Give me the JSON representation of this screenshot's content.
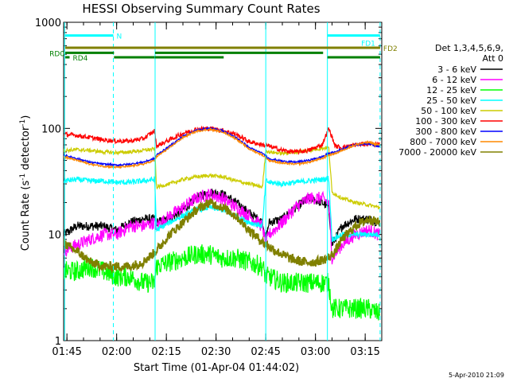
{
  "chart_data": {
    "type": "line",
    "title": "HESSI Observing Summary Count Rates",
    "xlabel": "Start Time (01-Apr-04 01:44:02)",
    "ylabel": "Count Rate (s",
    "ylabel_sup": "-1",
    "ylabel_tail": " detector",
    "ylabel_sup2": "-1",
    "ylabel_close": ")",
    "yscale": "log",
    "ylim": [
      1,
      1000
    ],
    "xlim_minutes": [
      0,
      96
    ],
    "x_ticks": [
      {
        "label": "01:45",
        "t": 1
      },
      {
        "label": "02:00",
        "t": 16
      },
      {
        "label": "02:15",
        "t": 31
      },
      {
        "label": "02:30",
        "t": 46
      },
      {
        "label": "02:45",
        "t": 61
      },
      {
        "label": "03:00",
        "t": 76
      },
      {
        "label": "03:15",
        "t": 91
      }
    ],
    "y_ticks": [
      {
        "label": "1",
        "v": 1
      },
      {
        "label": "10",
        "v": 10
      },
      {
        "label": "100",
        "v": 100
      },
      {
        "label": "1000",
        "v": 1000
      }
    ],
    "legend_header": [
      "Det 1,3,4,5,6,9,",
      "Att 0"
    ],
    "series": [
      {
        "name": "3 - 6 keV",
        "color": "#000000",
        "x": [
          0,
          4,
          8,
          12,
          16,
          20,
          24,
          27.5,
          28,
          32,
          36,
          40,
          44,
          48,
          52,
          56,
          60,
          61,
          62,
          66,
          70,
          74,
          78,
          80,
          81,
          84,
          88,
          92,
          95
        ],
        "y": [
          10,
          12,
          12,
          12,
          11,
          13,
          14,
          14,
          13,
          14,
          17,
          22,
          25,
          24,
          20,
          16,
          13,
          9,
          13,
          14,
          18,
          22,
          20,
          18,
          8,
          12,
          14,
          14,
          13
        ]
      },
      {
        "name": "6 - 12 keV",
        "color": "#ff00ff",
        "x": [
          0,
          4,
          8,
          12,
          16,
          20,
          24,
          27.5,
          28,
          32,
          36,
          40,
          44,
          48,
          52,
          56,
          60,
          61,
          62,
          66,
          70,
          74,
          78,
          80,
          81,
          84,
          88,
          92,
          95
        ],
        "y": [
          7,
          8,
          9,
          10,
          10,
          12,
          12,
          13,
          12,
          15,
          18,
          22,
          24,
          22,
          18,
          15,
          12,
          8,
          10,
          13,
          18,
          22,
          22,
          20,
          6,
          8,
          10,
          11,
          10
        ]
      },
      {
        "name": "12 - 25 keV",
        "color": "#00ff00",
        "x": [
          0,
          4,
          8,
          12,
          16,
          20,
          24,
          27.5,
          28,
          32,
          36,
          40,
          44,
          48,
          52,
          56,
          60,
          61,
          62,
          66,
          70,
          74,
          78,
          80,
          81,
          84,
          88,
          92,
          95
        ],
        "y": [
          4.5,
          4.5,
          5,
          4.5,
          4,
          4,
          3.5,
          3.5,
          5,
          5.5,
          6,
          6.5,
          6.5,
          6,
          6,
          5.5,
          5,
          4,
          4,
          3.5,
          3.5,
          3.5,
          3.5,
          3.5,
          2,
          2,
          2,
          2,
          1.8
        ]
      },
      {
        "name": "25 - 50 keV",
        "color": "#00ffff",
        "x": [
          0,
          4,
          8,
          12,
          16,
          20,
          24,
          27.5,
          28,
          32,
          36,
          40,
          44,
          48,
          52,
          56,
          60,
          61,
          62,
          66,
          70,
          74,
          78,
          80,
          81,
          84,
          88,
          92,
          95
        ],
        "y": [
          32,
          33,
          32,
          32,
          31,
          31,
          32,
          33,
          11,
          13,
          15,
          17,
          18,
          17,
          15,
          13,
          12,
          32,
          31,
          30,
          31,
          32,
          33,
          34,
          9,
          10,
          10,
          10,
          10
        ]
      },
      {
        "name": "50 - 100 keV",
        "color": "#cccc00",
        "x": [
          0,
          4,
          8,
          12,
          16,
          20,
          24,
          27.5,
          28,
          32,
          36,
          40,
          44,
          48,
          52,
          56,
          60,
          61,
          62,
          66,
          70,
          74,
          78,
          80,
          81,
          84,
          88,
          92,
          95
        ],
        "y": [
          62,
          63,
          62,
          60,
          59,
          60,
          62,
          64,
          28,
          30,
          33,
          35,
          36,
          35,
          32,
          30,
          28,
          62,
          60,
          58,
          60,
          62,
          65,
          66,
          25,
          22,
          20,
          19,
          18
        ]
      },
      {
        "name": "100 - 300 keV",
        "color": "#ff0000",
        "x": [
          0,
          4,
          8,
          12,
          16,
          20,
          24,
          27.5,
          28,
          32,
          36,
          40,
          44,
          48,
          52,
          56,
          60,
          62,
          66,
          70,
          74,
          78,
          80,
          82,
          84,
          88,
          92,
          95
        ],
        "y": [
          88,
          86,
          82,
          78,
          76,
          76,
          80,
          95,
          68,
          78,
          90,
          98,
          100,
          96,
          88,
          75,
          70,
          68,
          62,
          60,
          62,
          70,
          100,
          68,
          66,
          70,
          72,
          70
        ]
      },
      {
        "name": "300 - 800 keV",
        "color": "#0000ff",
        "x": [
          0,
          4,
          8,
          12,
          16,
          20,
          24,
          27.5,
          28,
          32,
          36,
          40,
          44,
          48,
          52,
          56,
          60,
          62,
          66,
          70,
          74,
          78,
          80,
          82,
          84,
          88,
          92,
          95
        ],
        "y": [
          56,
          52,
          48,
          46,
          45,
          46,
          48,
          52,
          56,
          68,
          84,
          96,
          100,
          95,
          82,
          66,
          58,
          52,
          49,
          48,
          50,
          54,
          58,
          60,
          64,
          70,
          72,
          68
        ]
      },
      {
        "name": "800 - 7000 keV",
        "color": "#ff8800",
        "x": [
          0,
          4,
          8,
          12,
          16,
          20,
          24,
          27.5,
          28,
          32,
          36,
          40,
          44,
          48,
          52,
          56,
          60,
          62,
          66,
          70,
          74,
          78,
          80,
          82,
          84,
          88,
          92,
          95
        ],
        "y": [
          54,
          50,
          46,
          44,
          43,
          44,
          46,
          50,
          54,
          66,
          82,
          94,
          98,
          93,
          80,
          64,
          56,
          50,
          47,
          46,
          48,
          52,
          56,
          58,
          62,
          70,
          74,
          70
        ]
      },
      {
        "name": "7000 - 20000 keV",
        "color": "#808000",
        "x": [
          0,
          2,
          4,
          8,
          12,
          16,
          20,
          24,
          28,
          32,
          36,
          40,
          44,
          48,
          52,
          56,
          60,
          64,
          68,
          72,
          76,
          80,
          82,
          84,
          88,
          92,
          95
        ],
        "y": [
          8.5,
          7.5,
          7,
          5.5,
          5,
          5,
          5,
          5.5,
          7,
          10,
          13,
          17,
          20,
          18,
          15,
          11,
          8.5,
          7,
          6,
          5.5,
          5.5,
          6,
          7,
          9,
          12,
          14,
          13
        ]
      }
    ],
    "vertical_lines": [
      {
        "t": 0.3,
        "color": "#00ffff",
        "style": "solid"
      },
      {
        "t": 15,
        "color": "#00ffff",
        "style": "dashed"
      },
      {
        "t": 27.6,
        "color": "#00ffff",
        "style": "solid"
      },
      {
        "t": 61,
        "color": "#00ffff",
        "style": "solid"
      },
      {
        "t": 79.6,
        "color": "#00ffff",
        "style": "solid"
      },
      {
        "t": 95.5,
        "color": "#00ffff",
        "style": "dashed"
      }
    ],
    "flag_bars": [
      {
        "label": "N",
        "color": "#00ffff",
        "y": 750,
        "start": 0.5,
        "end": 15,
        "label_pos": "right"
      },
      {
        "label": "FD1",
        "color": "#00ffff",
        "y": 750,
        "start": 79.6,
        "end": 95.5,
        "label_pos": "under-end"
      },
      {
        "label": "FD2",
        "color": "#808000",
        "y": 575,
        "start": 0.5,
        "end": 95.5,
        "label_pos": "right"
      },
      {
        "label": "RD0",
        "color": "#008000",
        "y": 515,
        "start": 0.5,
        "end": 15.2,
        "label_pos": "left"
      },
      {
        "label": "",
        "color": "#008000",
        "y": 515,
        "start": 27.6,
        "end": 61,
        "label_pos": "none"
      },
      {
        "label": "",
        "color": "#008000",
        "y": 515,
        "start": 61,
        "end": 78.3,
        "label_pos": "none"
      },
      {
        "label": "RD4",
        "color": "#008000",
        "y": 468,
        "start": 0.5,
        "end": 1.8,
        "label_pos": "right"
      },
      {
        "label": "",
        "color": "#008000",
        "y": 468,
        "start": 15.2,
        "end": 27.5,
        "label_pos": "none"
      },
      {
        "label": "",
        "color": "#008000",
        "y": 468,
        "start": 27.6,
        "end": 48.3,
        "label_pos": "none"
      },
      {
        "label": "",
        "color": "#008000",
        "y": 468,
        "start": 79.6,
        "end": 95.5,
        "label_pos": "none"
      }
    ]
  },
  "footer": {
    "timestamp": "5-Apr-2010 21:09"
  }
}
